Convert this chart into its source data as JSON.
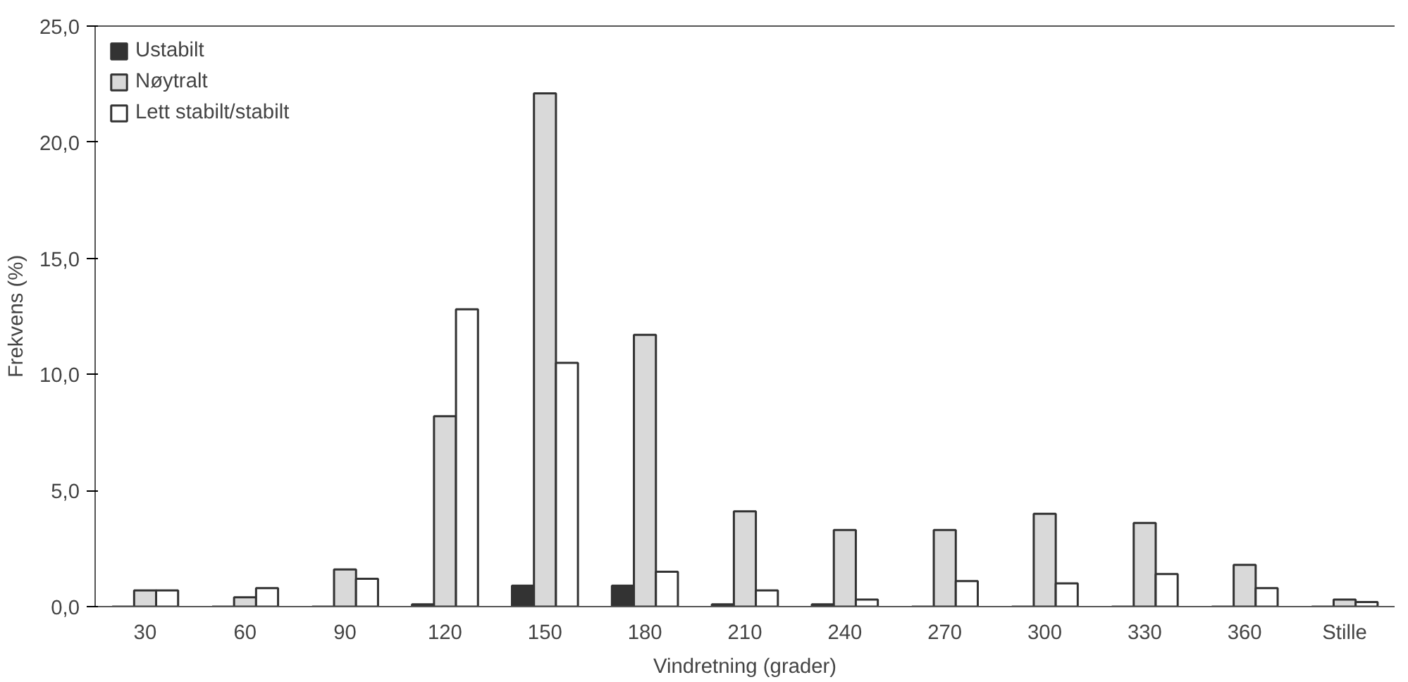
{
  "chart_data": {
    "type": "bar",
    "xlabel": "Vindretning (grader)",
    "ylabel": "Frekvens (%)",
    "categories": [
      "30",
      "60",
      "90",
      "120",
      "150",
      "180",
      "210",
      "240",
      "270",
      "300",
      "330",
      "360",
      "Stille"
    ],
    "series": [
      {
        "name": "Ustabilt",
        "color": "#333333",
        "values": [
          0,
          0,
          0,
          0.1,
          0.9,
          0.9,
          0.1,
          0.1,
          0,
          0,
          0,
          0,
          0
        ]
      },
      {
        "name": "Nøytralt",
        "color": "#d9d9d9",
        "values": [
          0.7,
          0.4,
          1.6,
          8.2,
          22.1,
          11.7,
          4.1,
          3.3,
          3.3,
          4.0,
          3.6,
          1.8,
          0.3
        ]
      },
      {
        "name": "Lett stabilt/stabilt",
        "color": "#ffffff",
        "values": [
          0.7,
          0.8,
          1.2,
          12.8,
          10.5,
          1.5,
          0.7,
          0.3,
          1.1,
          1.0,
          1.4,
          0.8,
          0.2
        ]
      }
    ],
    "ylim": [
      0,
      25
    ],
    "yticks": [
      {
        "value": 0,
        "label": "0,0"
      },
      {
        "value": 5,
        "label": "5,0"
      },
      {
        "value": 10,
        "label": "10,0"
      },
      {
        "value": 15,
        "label": "15,0"
      },
      {
        "value": 20,
        "label": "20,0"
      },
      {
        "value": 25,
        "label": "25,0"
      }
    ],
    "grid": false,
    "legend": "top left"
  }
}
